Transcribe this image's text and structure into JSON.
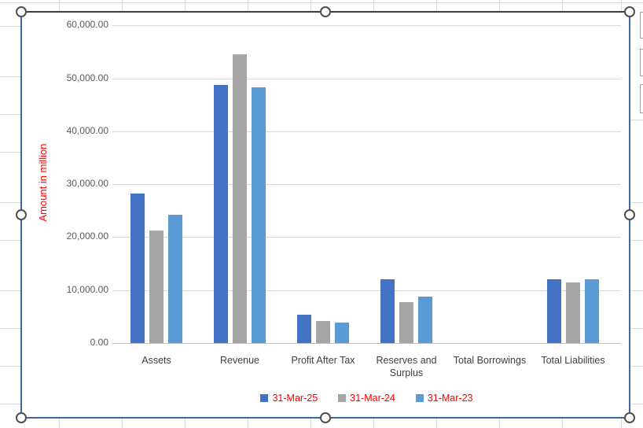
{
  "chart_data": {
    "type": "bar",
    "title": "",
    "categories": [
      "Assets",
      "Revenue",
      "Profit After Tax",
      "Reserves and Surplus",
      "Total Borrowings",
      "Total Liabilities"
    ],
    "series": [
      {
        "name": "31-Mar-25",
        "color": "#4472C4",
        "values": [
          28300,
          48800,
          5400,
          12000,
          0,
          12100
        ]
      },
      {
        "name": "31-Mar-24",
        "color": "#A5A5A5",
        "values": [
          21300,
          54600,
          4100,
          7700,
          0,
          11500
        ]
      },
      {
        "name": "31-Mar-23",
        "color": "#5B9BD5",
        "values": [
          24200,
          48300,
          3800,
          8800,
          0,
          12100
        ]
      }
    ],
    "xlabel": "",
    "ylabel": "Amount in million",
    "ylim": [
      0,
      60000
    ],
    "ytick_interval": 10000,
    "y_tick_labels": [
      "0.00",
      "10,000.00",
      "20,000.00",
      "30,000.00",
      "40,000.00",
      "50,000.00",
      "60,000.00"
    ],
    "grid": true,
    "legend_position": "bottom",
    "axis_label_color": "#FF0000",
    "legend_text_color": "#FF0000",
    "tick_text_color": "#595959",
    "category_text_color": "#3F3F3F"
  }
}
